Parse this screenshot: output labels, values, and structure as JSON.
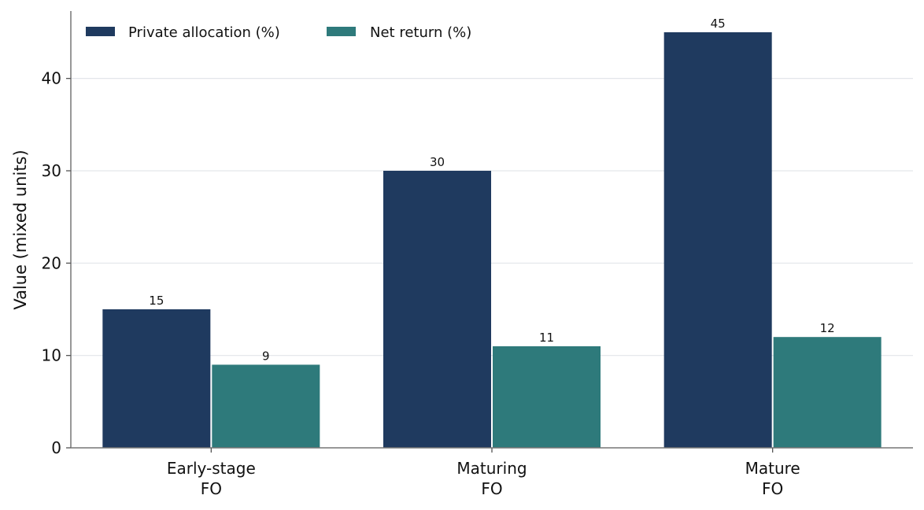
{
  "chart_data": {
    "type": "bar",
    "categories": [
      [
        "Early-stage",
        "FO"
      ],
      [
        "Maturing",
        "FO"
      ],
      [
        "Mature",
        "FO"
      ]
    ],
    "series": [
      {
        "name": "Private allocation (%)",
        "color": "#1f3a5f",
        "values": [
          15,
          30,
          45
        ]
      },
      {
        "name": "Net return (%)",
        "color": "#2e7a7b",
        "values": [
          9,
          11,
          12
        ]
      }
    ],
    "xlabel": "",
    "ylabel": "Value (mixed units)",
    "ylim": [
      0,
      47.3
    ],
    "yticks": [
      0,
      10,
      20,
      30,
      40
    ],
    "grid": "horizontal",
    "legend_position": "top-left",
    "data_labels": true
  }
}
